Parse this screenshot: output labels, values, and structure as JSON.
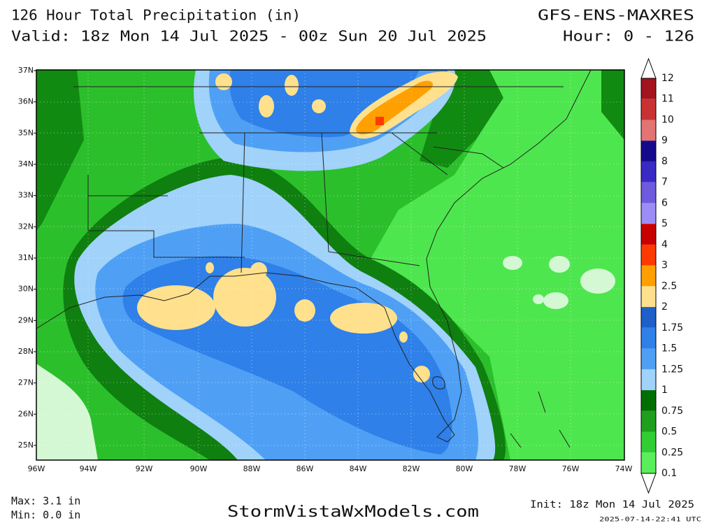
{
  "header": {
    "title": "126 Hour Total Precipitation (in)",
    "valid": "Valid: 18z Mon 14 Jul 2025 - 00z Sun 20 Jul 2025",
    "model": "GFS-ENS-MAXRES",
    "hours": "Hour: 0 - 126"
  },
  "map": {
    "lat_labels": [
      "37N",
      "36N",
      "35N",
      "34N",
      "33N",
      "32N",
      "31N",
      "30N",
      "29N",
      "28N",
      "27N",
      "26N",
      "25N"
    ],
    "lon_labels": [
      "96W",
      "94W",
      "92W",
      "90W",
      "88W",
      "86W",
      "84W",
      "82W",
      "80W",
      "78W",
      "76W",
      "74W"
    ]
  },
  "legend": {
    "levels": [
      "12",
      "11",
      "10",
      "9",
      "8",
      "7",
      "6",
      "5",
      "4",
      "3",
      "2.5",
      "2",
      "1.75",
      "1.5",
      "1.25",
      "1",
      "0.75",
      "0.5",
      "0.25",
      "0.1"
    ],
    "colors": [
      "#a3141e",
      "#c83232",
      "#e27474",
      "#160a8c",
      "#3a2ac4",
      "#6e5adc",
      "#9c8cf5",
      "#c80000",
      "#ff3a00",
      "#ff9f00",
      "#ffe08c",
      "#1f5fc8",
      "#2f80e8",
      "#4fa0f5",
      "#a0d2fa",
      "#006e00",
      "#1ea01e",
      "#32cd32",
      "#5aee5a"
    ]
  },
  "footer": {
    "max": "Max: 3.1 in",
    "min": "Min: 0.0 in",
    "site": "StormVistaWxModels.com",
    "init": "Init: 18z Mon 14 Jul 2025",
    "timestamp": "2025-07-14-22:41 UTC"
  }
}
